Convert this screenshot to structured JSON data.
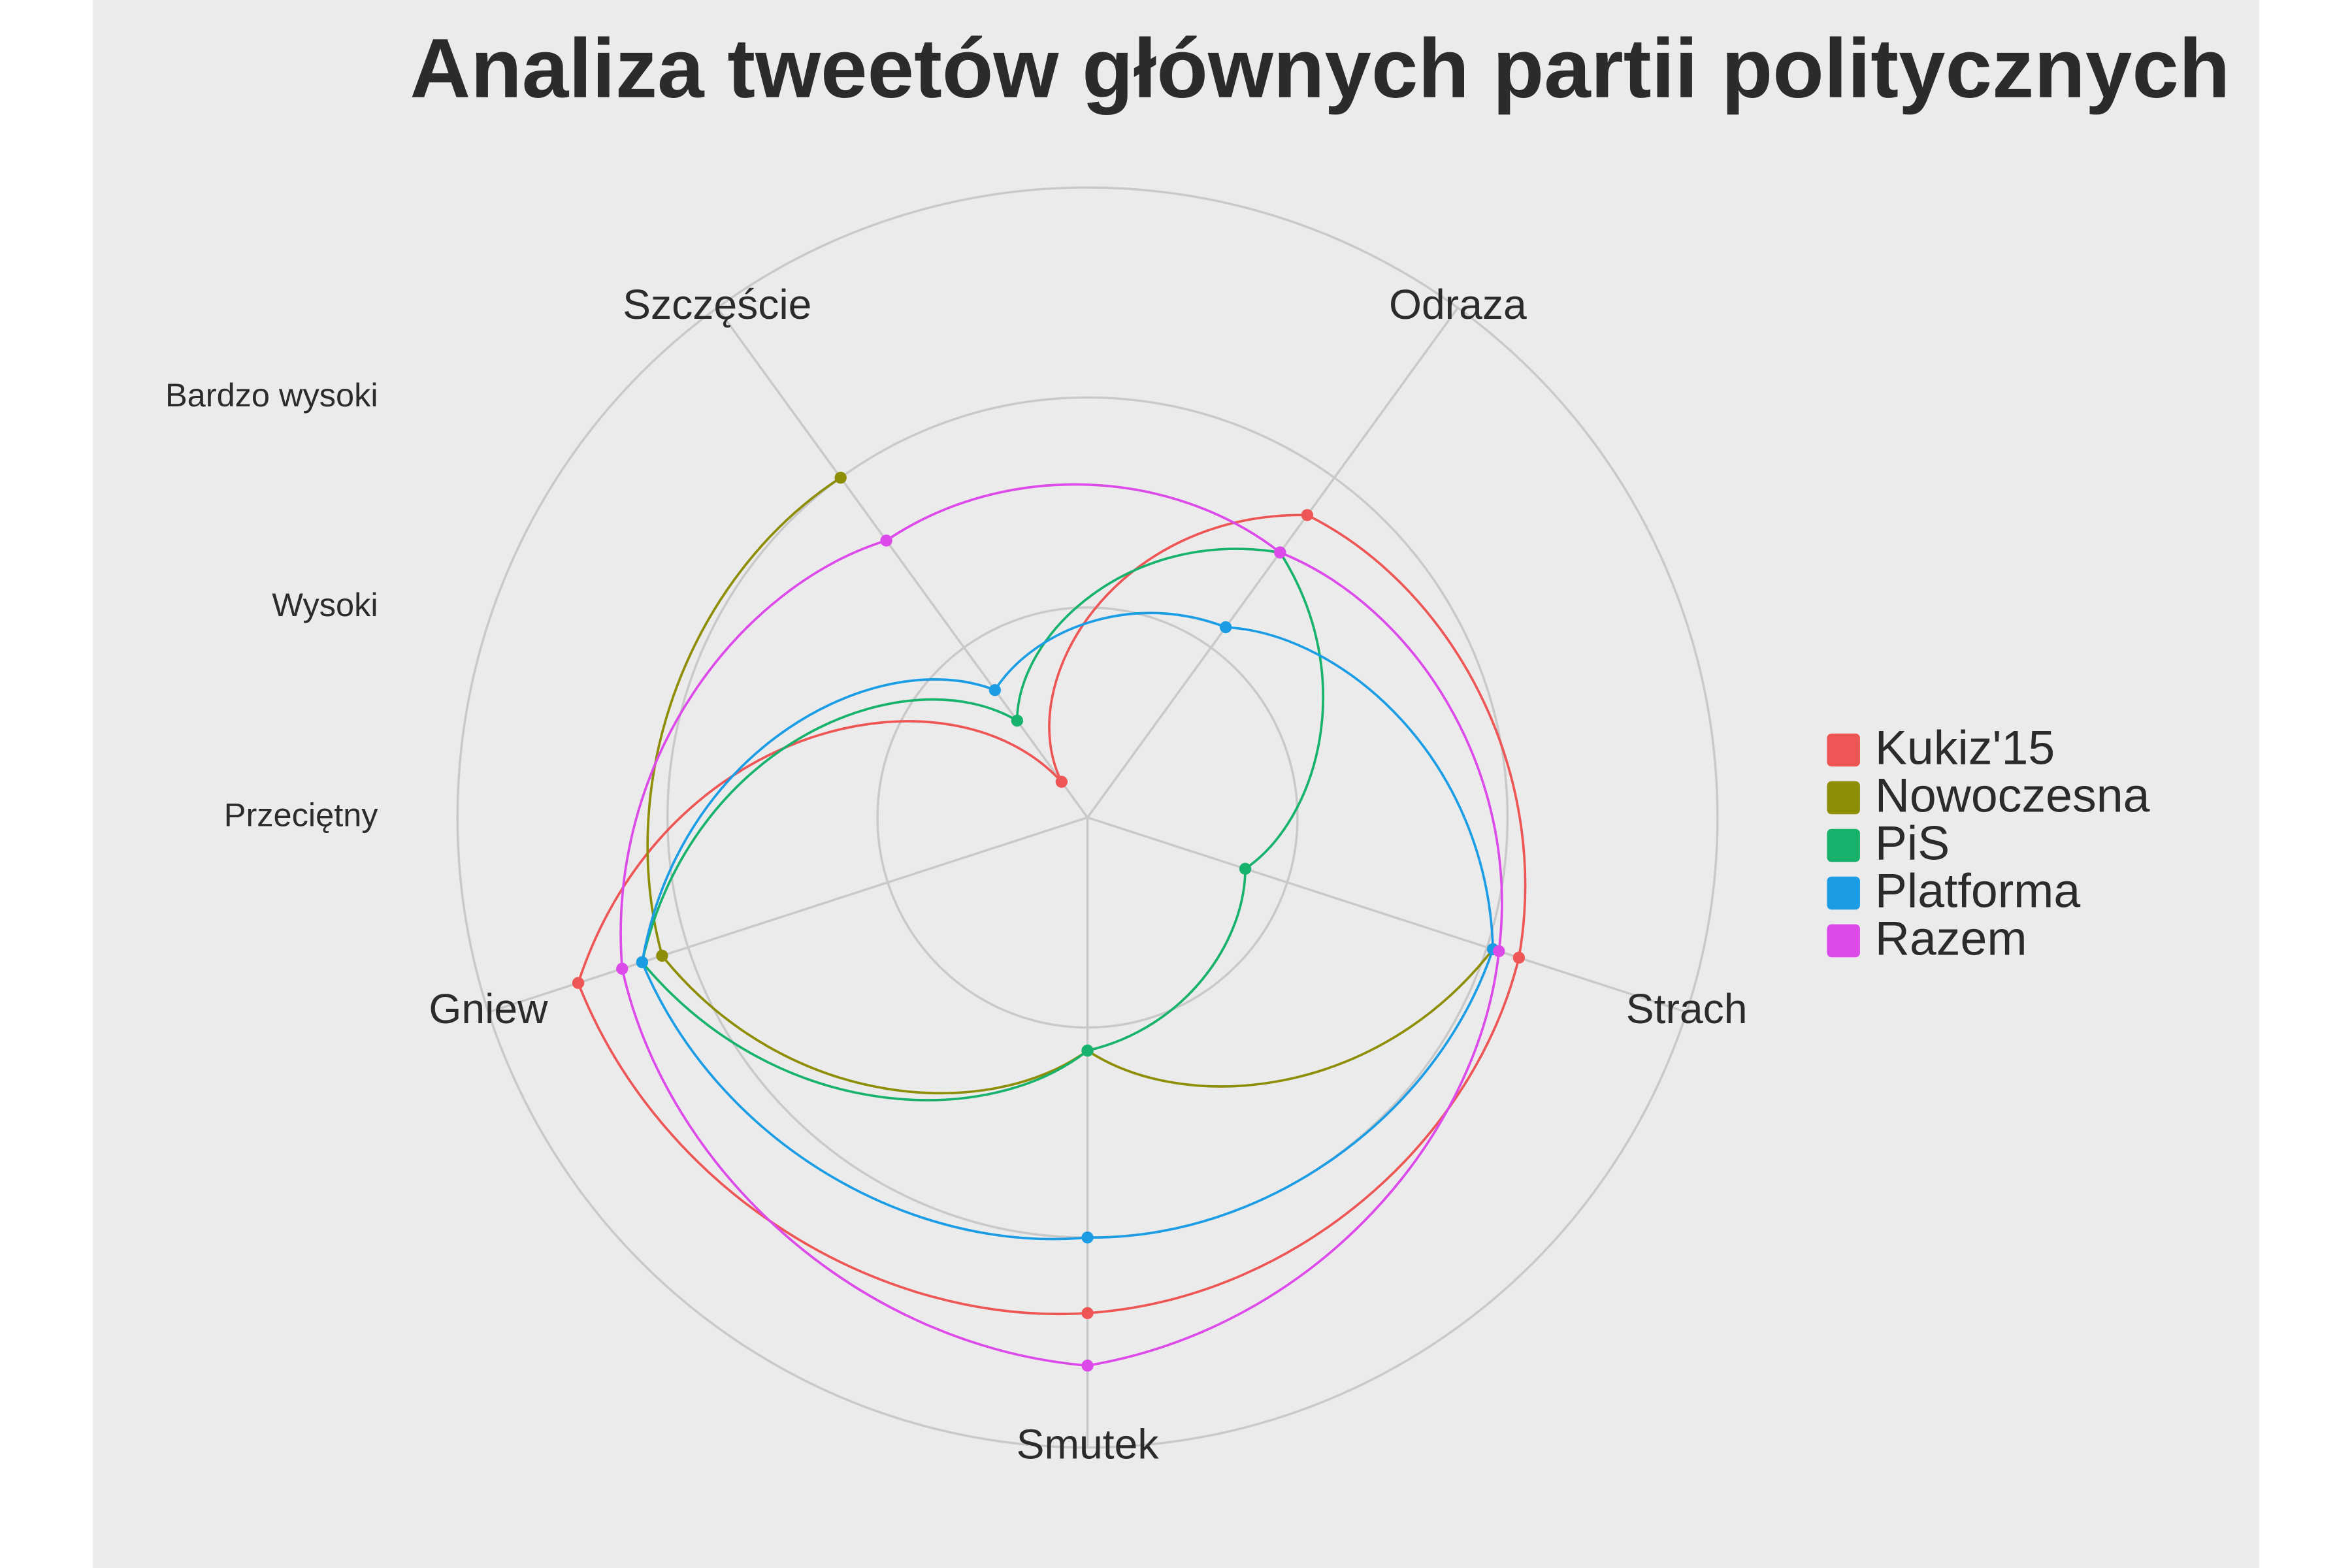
{
  "chart_data": {
    "type": "radar",
    "title": "Analiza tweetów głównych partii politycznych",
    "categories": [
      "Odraza",
      "Strach",
      "Smutek",
      "Gniew",
      "Szczęście"
    ],
    "ylim": [
      0,
      3
    ],
    "yticks": [
      {
        "value": 0,
        "label": "Przeciętny"
      },
      {
        "value": 1,
        "label": "Wysoki"
      },
      {
        "value": 2,
        "label": "Bardzo wysoki"
      }
    ],
    "grid": true,
    "legend": "right",
    "series": [
      {
        "name": "Kukiz'15",
        "color": "#ee5555",
        "values": [
          1.78,
          2.16,
          2.36,
          2.55,
          0.21
        ]
      },
      {
        "name": "Nowoczesna",
        "color": "#8e8e06",
        "values": [
          null,
          2.03,
          1.11,
          2.13,
          2.0
        ]
      },
      {
        "name": "PiS",
        "color": "#17b26c",
        "values": [
          1.56,
          0.79,
          1.11,
          2.23,
          0.57
        ]
      },
      {
        "name": "Platforma",
        "color": "#1b9de6",
        "values": [
          1.12,
          2.03,
          2.0,
          2.23,
          0.75
        ]
      },
      {
        "name": "Razem",
        "color": "#dd4aea",
        "values": [
          1.56,
          2.06,
          2.61,
          2.33,
          1.63
        ]
      }
    ]
  }
}
